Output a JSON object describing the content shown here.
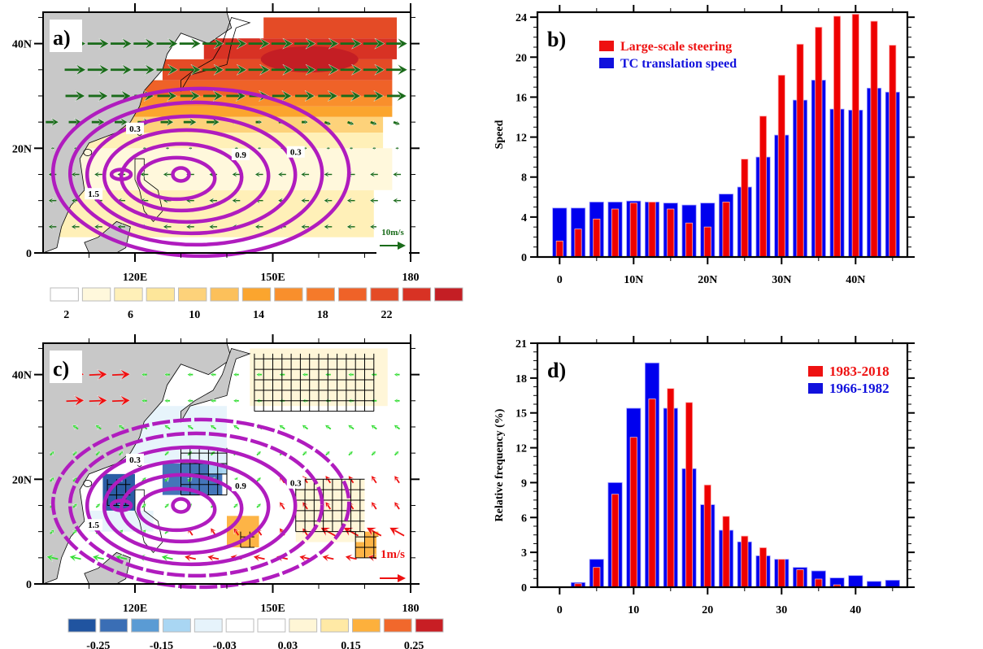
{
  "chart_data": [
    {
      "id": "a",
      "type": "heatmap",
      "panel_label": "a)",
      "description": "Map: shading = large-scale steering magnitude, vectors = steering flow, magenta contours = TC frequency",
      "x_ticks": [
        "120E",
        "150E",
        "180"
      ],
      "y_ticks": [
        "0",
        "20N",
        "40N"
      ],
      "xlim": [
        100,
        180
      ],
      "ylim": [
        0,
        46
      ],
      "vector_reference": "10m/s",
      "contour_labels": [
        "0.3",
        "0.9",
        "1.5",
        "0.3"
      ],
      "colorbar": {
        "labels": [
          "2",
          "6",
          "10",
          "14",
          "18",
          "22"
        ],
        "colors": [
          "#ffffff",
          "#fff8dc",
          "#fff0b8",
          "#fde69a",
          "#fdd27a",
          "#fcc05a",
          "#fba52e",
          "#f98f2c",
          "#f57a2a",
          "#ef6228",
          "#e44b26",
          "#d83224",
          "#c41e24"
        ]
      },
      "colors": {
        "vector": "#1a6b1a",
        "contour": "#b01cbe",
        "land": "#c8c8c8"
      }
    },
    {
      "id": "b",
      "type": "bar",
      "panel_label": "b)",
      "title": "",
      "xlabel": "",
      "ylabel": "Speed",
      "x_tick_labels": [
        "0",
        "10N",
        "20N",
        "30N",
        "40N"
      ],
      "x_ticks_values": [
        0,
        10,
        20,
        30,
        40
      ],
      "xlim": [
        -3,
        47
      ],
      "ylim": [
        0,
        24.5
      ],
      "y_ticks": [
        0,
        4,
        8,
        12,
        16,
        20,
        24
      ],
      "categories": [
        0,
        2.5,
        5,
        7.5,
        10,
        12.5,
        15,
        17.5,
        20,
        22.5,
        25,
        27.5,
        30,
        32.5,
        35,
        37.5,
        40,
        42.5,
        45
      ],
      "series": [
        {
          "name": "TC translation speed",
          "color": "#0000ee",
          "values": [
            4.9,
            4.9,
            5.5,
            5.5,
            5.6,
            5.5,
            5.4,
            5.2,
            5.4,
            6.3,
            7.0,
            10.0,
            12.2,
            15.7,
            17.7,
            14.8,
            14.7,
            16.9,
            16.5
          ]
        },
        {
          "name": "Large-scale steering",
          "color": "#ee0000",
          "values": [
            1.6,
            2.8,
            3.8,
            4.8,
            5.4,
            5.5,
            4.8,
            3.4,
            3.0,
            5.5,
            9.8,
            14.1,
            18.2,
            21.3,
            23.0,
            24.1,
            24.3,
            23.6,
            21.2
          ]
        }
      ],
      "legend": [
        {
          "label": "Large-scale steering",
          "color": "#ee1111"
        },
        {
          "label": "TC translation speed",
          "color": "#1111dd"
        }
      ],
      "legend_position": "top-center",
      "grid": false
    },
    {
      "id": "c",
      "type": "heatmap",
      "panel_label": "c)",
      "description": "Map: shading = steering flow difference, vectors (green/red) = flow difference, hatching = significance, magenta contours = TC frequency",
      "x_ticks": [
        "120E",
        "150E",
        "180"
      ],
      "y_ticks": [
        "0",
        "20N",
        "40N"
      ],
      "xlim": [
        100,
        180
      ],
      "ylim": [
        0,
        46
      ],
      "vector_reference": "1m/s",
      "contour_labels": [
        "0.3",
        "0.9",
        "1.5",
        "0.3"
      ],
      "colorbar": {
        "labels": [
          "-0.25",
          "-0.15",
          "-0.03",
          "0.03",
          "0.15",
          "0.25"
        ],
        "colors": [
          "#2054a0",
          "#3a6eb5",
          "#5a9bd4",
          "#a9d6f3",
          "#e6f3fb",
          "#ffffff",
          "#ffffff",
          "#fff6d6",
          "#ffe9a5",
          "#fdb03c",
          "#f1682c",
          "#c81e24"
        ]
      },
      "colors": {
        "vector_pos": "#33dd33",
        "vector_neg": "#ee1111",
        "contour": "#b01cbe",
        "land": "#c8c8c8"
      }
    },
    {
      "id": "d",
      "type": "bar",
      "panel_label": "d)",
      "title": "",
      "xlabel": "",
      "ylabel": "Relative frequency (%)",
      "x_tick_labels": [
        "0",
        "10",
        "20",
        "30",
        "40"
      ],
      "x_ticks_values": [
        0,
        10,
        20,
        30,
        40
      ],
      "xlim": [
        -3,
        47
      ],
      "ylim": [
        0,
        21
      ],
      "y_ticks": [
        0,
        3,
        6,
        9,
        12,
        15,
        18,
        21
      ],
      "categories": [
        2.5,
        5,
        7.5,
        10,
        12.5,
        15,
        17.5,
        20,
        22.5,
        25,
        27.5,
        30,
        32.5,
        35,
        37.5,
        40,
        42.5,
        45
      ],
      "series": [
        {
          "name": "1966-1982",
          "color": "#0000ee",
          "values": [
            0.4,
            2.4,
            9.0,
            15.4,
            19.3,
            15.4,
            10.2,
            7.1,
            4.9,
            3.9,
            2.7,
            2.4,
            1.7,
            1.4,
            0.8,
            1.0,
            0.5,
            0.6
          ]
        },
        {
          "name": "1983-2018",
          "color": "#ee0000",
          "values": [
            0.3,
            1.7,
            8.0,
            12.9,
            16.2,
            17.1,
            15.9,
            8.8,
            6.1,
            4.4,
            3.4,
            2.4,
            1.5,
            0.7,
            0.2,
            0,
            0,
            0
          ]
        }
      ],
      "legend": [
        {
          "label": "1983-2018",
          "color": "#ee1111"
        },
        {
          "label": "1966-1982",
          "color": "#1111dd"
        }
      ],
      "legend_position": "top-right",
      "grid": false
    }
  ]
}
